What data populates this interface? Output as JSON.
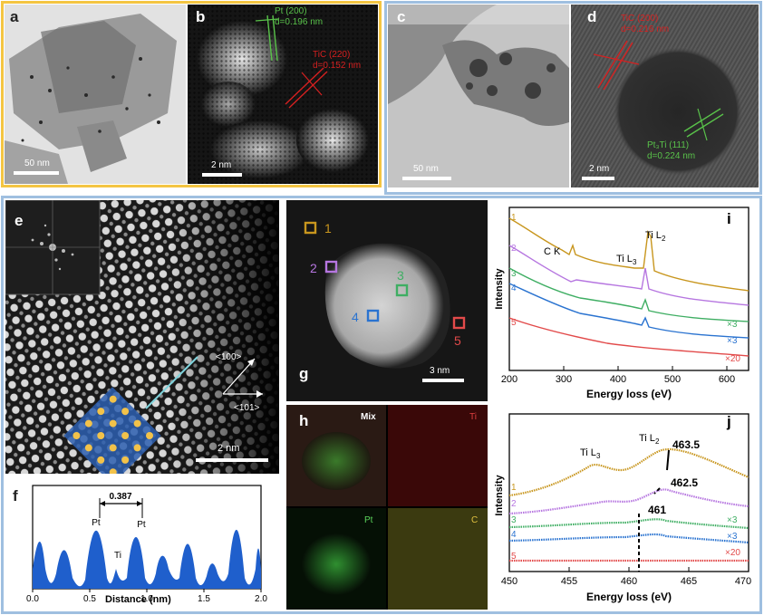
{
  "panels": {
    "a": {
      "letter": "a",
      "scale": "50 nm"
    },
    "b": {
      "letter": "b",
      "scale": "2 nm",
      "ann1_name": "Pt (200)",
      "ann1_d": "d=0.196 nm",
      "ann2_name": "TiC (220)",
      "ann2_d": "d=0.152 nm"
    },
    "c": {
      "letter": "c",
      "scale": "50 nm"
    },
    "d": {
      "letter": "d",
      "scale": "2 nm",
      "ann1_name": "TiC (200)",
      "ann1_d": "d=0.216 nm",
      "ann2_name": "Pt₃Ti (111)",
      "ann2_d": "d=0.224 nm"
    },
    "e": {
      "letter": "e",
      "scale": "2 nm",
      "dir1": "<100>",
      "dir2": "<101>"
    },
    "f": {
      "letter": "f",
      "xlabel": "Distance (nm)",
      "distance": "0.387",
      "peak1": "Pt",
      "peak2": "Pt",
      "peak3": "Ti",
      "ticks": [
        "0.0",
        "0.5",
        "1.0",
        "1.5",
        "2.0"
      ]
    },
    "g": {
      "letter": "g",
      "scale": "3 nm",
      "points": [
        "1",
        "2",
        "3",
        "4",
        "5"
      ]
    },
    "h": {
      "letter": "h",
      "mix": "Mix",
      "ti": "Ti",
      "pt": "Pt",
      "c": "C"
    },
    "i": {
      "letter": "i",
      "xlabel": "Energy loss (eV)",
      "ylabel": "Intensity",
      "ck": "C K",
      "til3": "Ti L",
      "til3_sub": "3",
      "til2": "Ti L",
      "til2_sub": "2",
      "ticks": [
        "200",
        "300",
        "400",
        "500",
        "600"
      ],
      "labels": [
        "1",
        "2",
        "3",
        "4",
        "5"
      ],
      "mult": [
        "×3",
        "×3",
        "×20"
      ]
    },
    "j": {
      "letter": "j",
      "xlabel": "Energy loss (eV)",
      "ylabel": "Intensity",
      "til3": "Ti L",
      "til3_sub": "3",
      "til2": "Ti L",
      "til2_sub": "2",
      "peakA": "463.5",
      "peakB": "462.5",
      "peakC": "461",
      "ticks": [
        "450",
        "455",
        "460",
        "465",
        "470"
      ],
      "labels": [
        "1",
        "2",
        "3",
        "4",
        "5"
      ],
      "mult": [
        "×3",
        "×3",
        "×20"
      ]
    }
  },
  "colors": {
    "s1": "#c8961e",
    "s2": "#b676e0",
    "s3": "#3fae63",
    "s4": "#2a73d0",
    "s5": "#e24a4a",
    "frame_ab": "#f4c542",
    "frame_cd": "#9fbfe0",
    "frame_bottom": "#9fbfe0",
    "ann_green": "#59c24a",
    "ann_red": "#d62020"
  }
}
